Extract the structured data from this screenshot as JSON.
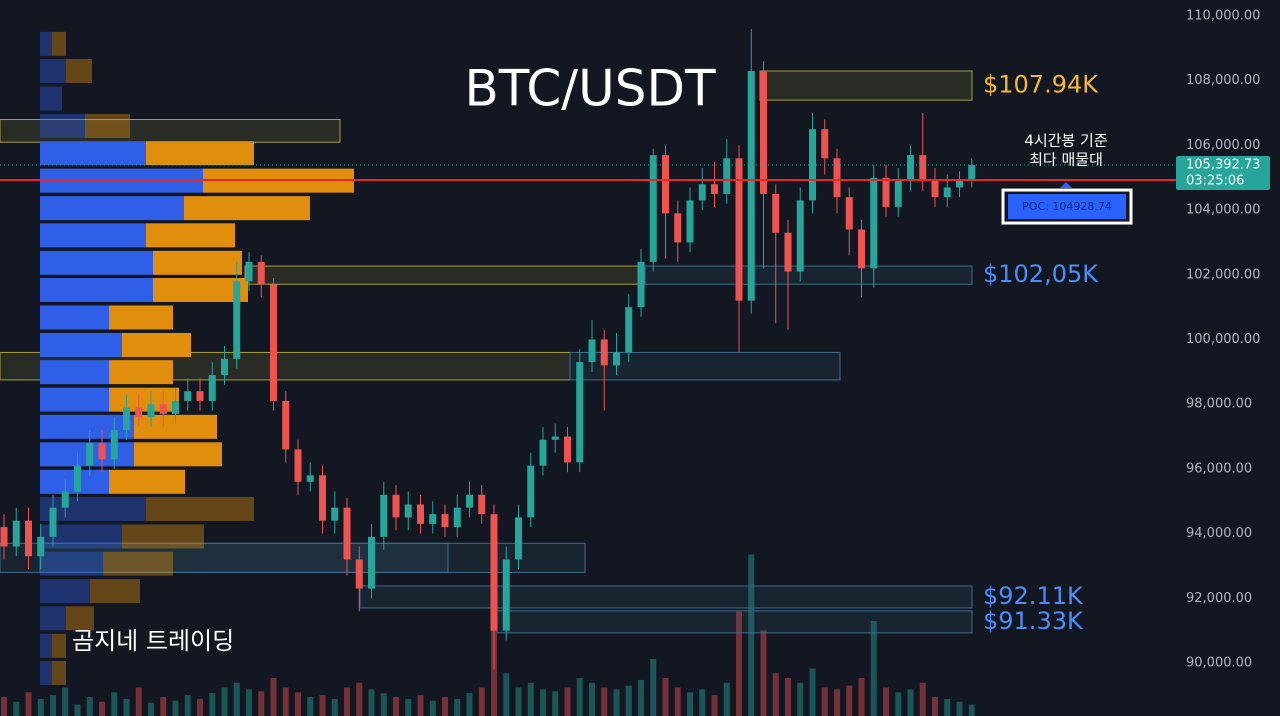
{
  "chart_data": {
    "type": "candlestick",
    "title": "BTC/USDT",
    "watermark": "곰지네 트레이딩",
    "annotation": [
      "4시간봉 기준",
      "최다 매물대"
    ],
    "ylim": [
      88360,
      110495
    ],
    "yticks": [
      {
        "value": 90000,
        "label": "90,000.00"
      },
      {
        "value": 92000,
        "label": "92,000.00"
      },
      {
        "value": 94000,
        "label": "94,000.00"
      },
      {
        "value": 96000,
        "label": "96,000.00"
      },
      {
        "value": 98000,
        "label": "98,000.00"
      },
      {
        "value": 100000,
        "label": "100,000.00"
      },
      {
        "value": 102000,
        "label": "102,000.00"
      },
      {
        "value": 104000,
        "label": "104,000.00"
      },
      {
        "value": 106000,
        "label": "106,000.00"
      },
      {
        "value": 108000,
        "label": "108,000.00"
      },
      {
        "value": 110000,
        "label": "110,000.00"
      }
    ],
    "grid": false,
    "up_color": "#26a69a",
    "down_color": "#ef5350",
    "open": [
      94200,
      93600,
      94400,
      93300,
      93900,
      94800,
      95300,
      96100,
      96800,
      96300,
      97200,
      97900,
      97600,
      98000,
      97700,
      98100,
      98400,
      98100,
      98900,
      99400,
      101800,
      102400,
      101700,
      98100,
      96600,
      95600,
      95800,
      94400,
      94800,
      93200,
      92300,
      93900,
      95200,
      94500,
      94900,
      94300,
      94600,
      94200,
      94800,
      95200,
      94600,
      91000,
      93200,
      94500,
      96100,
      96900,
      97000,
      96200,
      99300,
      100000,
      99200,
      99600,
      101000,
      102400,
      105700,
      103900,
      103000,
      104300,
      104800,
      104500,
      105600,
      101200,
      108300,
      104500,
      103300,
      102100,
      104300,
      106500,
      105600,
      104400,
      103400,
      102200,
      105000,
      104100,
      104900,
      105700,
      104900,
      104400,
      104700,
      104900
    ],
    "high": [
      94600,
      94800,
      94800,
      94300,
      95200,
      95700,
      96500,
      97200,
      97200,
      97600,
      98300,
      98300,
      98400,
      98400,
      98500,
      98800,
      98800,
      99300,
      99800,
      102400,
      102700,
      102600,
      101900,
      98400,
      96900,
      96200,
      96100,
      95300,
      95100,
      93600,
      94300,
      95600,
      95500,
      95300,
      95200,
      95000,
      94900,
      95200,
      95600,
      95500,
      94900,
      93600,
      94900,
      96500,
      97300,
      97400,
      97300,
      99700,
      100600,
      100300,
      100200,
      101400,
      102800,
      105900,
      106000,
      104300,
      104700,
      105300,
      105500,
      106200,
      106000,
      109600,
      108600,
      104800,
      103700,
      104700,
      107000,
      106800,
      105900,
      104700,
      103700,
      105400,
      105400,
      105300,
      106000,
      107000,
      105300,
      105100,
      105200,
      105600
    ],
    "low": [
      93200,
      93300,
      92900,
      92900,
      93600,
      94500,
      95000,
      95800,
      95900,
      96000,
      96900,
      97300,
      97300,
      97300,
      97400,
      97800,
      97800,
      97800,
      98600,
      99100,
      101500,
      101300,
      97800,
      96200,
      95200,
      95300,
      94000,
      94000,
      92700,
      91600,
      92000,
      93500,
      94100,
      94100,
      94000,
      94000,
      93900,
      93900,
      94500,
      94300,
      89800,
      90700,
      92900,
      94200,
      95800,
      96500,
      95900,
      95900,
      99000,
      97800,
      98900,
      99300,
      100700,
      102100,
      102500,
      102400,
      102700,
      104000,
      104100,
      104200,
      99600,
      100800,
      102200,
      100500,
      100300,
      101800,
      103900,
      105100,
      103900,
      102600,
      101300,
      101600,
      103800,
      103800,
      104600,
      104600,
      104100,
      104100,
      104400,
      104700
    ],
    "close": [
      93600,
      94400,
      93300,
      93900,
      94800,
      95300,
      96100,
      96800,
      96300,
      97200,
      97900,
      97600,
      98000,
      97700,
      98100,
      98400,
      98100,
      98900,
      99400,
      101800,
      102400,
      101700,
      98100,
      96600,
      95600,
      95800,
      94400,
      94800,
      93200,
      92300,
      93900,
      95200,
      94500,
      94900,
      94300,
      94600,
      94200,
      94800,
      95200,
      94600,
      91000,
      93200,
      94500,
      96100,
      96900,
      97000,
      96200,
      99300,
      100000,
      99200,
      99600,
      101000,
      102400,
      105700,
      103900,
      103000,
      104300,
      104800,
      104500,
      105600,
      101200,
      108300,
      104500,
      103300,
      102100,
      104300,
      106500,
      105600,
      104400,
      103400,
      102200,
      105000,
      104100,
      104900,
      105700,
      104900,
      104400,
      104700,
      104900,
      105392.73
    ],
    "volume": [
      20,
      15,
      25,
      18,
      22,
      30,
      12,
      20,
      15,
      25,
      18,
      30,
      14,
      20,
      16,
      22,
      18,
      24,
      30,
      35,
      28,
      26,
      40,
      30,
      25,
      20,
      22,
      18,
      30,
      35,
      28,
      24,
      20,
      18,
      22,
      16,
      20,
      18,
      24,
      30,
      90,
      45,
      30,
      35,
      28,
      26,
      30,
      40,
      35,
      30,
      28,
      32,
      38,
      60,
      40,
      30,
      25,
      28,
      22,
      35,
      110,
      170,
      90,
      45,
      40,
      35,
      50,
      30,
      28,
      32,
      40,
      100,
      30,
      25,
      28,
      35,
      20,
      18,
      15,
      12
    ],
    "vlim": [
      0,
      200
    ],
    "volume_profile": {
      "levels": [
        109140,
        108300,
        107450,
        106600,
        105760,
        104910,
        104060,
        103220,
        102370,
        101530,
        100680,
        99830,
        98990,
        98140,
        97300,
        96450,
        95600,
        94760,
        93910,
        93070,
        92220,
        91380,
        90530,
        89690
      ],
      "buy": [
        12,
        26,
        22,
        45,
        106,
        163,
        144,
        106,
        113,
        113,
        69,
        82,
        69,
        69,
        94,
        94,
        69,
        106,
        82,
        63,
        50,
        26,
        12,
        12
      ],
      "sell": [
        14,
        26,
        0,
        45,
        108,
        151,
        126,
        89,
        89,
        95,
        64,
        69,
        64,
        70,
        83,
        88,
        76,
        108,
        82,
        70,
        50,
        28,
        14,
        14
      ],
      "value_area": [
        95200,
        106200
      ],
      "buy_color": "#2f5fe6",
      "sell_color": "#e08e0b"
    },
    "zones": [
      {
        "low": 107400,
        "high": 108300,
        "color": "#a8a23a",
        "label": "$107.94K",
        "label_color": "#f5b82e"
      },
      {
        "low": 106100,
        "high": 106800,
        "color": "#a8a23a"
      },
      {
        "low": 101710,
        "high": 102270,
        "color": "#a8a23a"
      },
      {
        "low": 101710,
        "high": 102270,
        "color": "#3d6f8f",
        "label": "$102,05K",
        "label_color": "#4b8ef7"
      },
      {
        "low": 98750,
        "high": 99600,
        "color": "#a8a23a"
      },
      {
        "low": 98750,
        "high": 99600,
        "color": "#3d6f8f"
      },
      {
        "low": 92800,
        "high": 93700,
        "color": "#3d6f8f"
      },
      {
        "low": 92800,
        "high": 93700,
        "color": "#3d6f8f"
      },
      {
        "low": 91700,
        "high": 92380,
        "color": "#3d6f8f",
        "label": "$92.11K",
        "label_color": "#4b8ef7"
      },
      {
        "low": 90930,
        "high": 91610,
        "color": "#3d6f8f",
        "label": "$91.33K",
        "label_color": "#4b8ef7"
      }
    ],
    "poc": {
      "value": 104928.74,
      "label": "POC: 104928.74",
      "color": "#e8262b"
    },
    "last_price": {
      "value": 105392.73,
      "label": "105,392.73"
    },
    "countdown": "03:25:06"
  }
}
